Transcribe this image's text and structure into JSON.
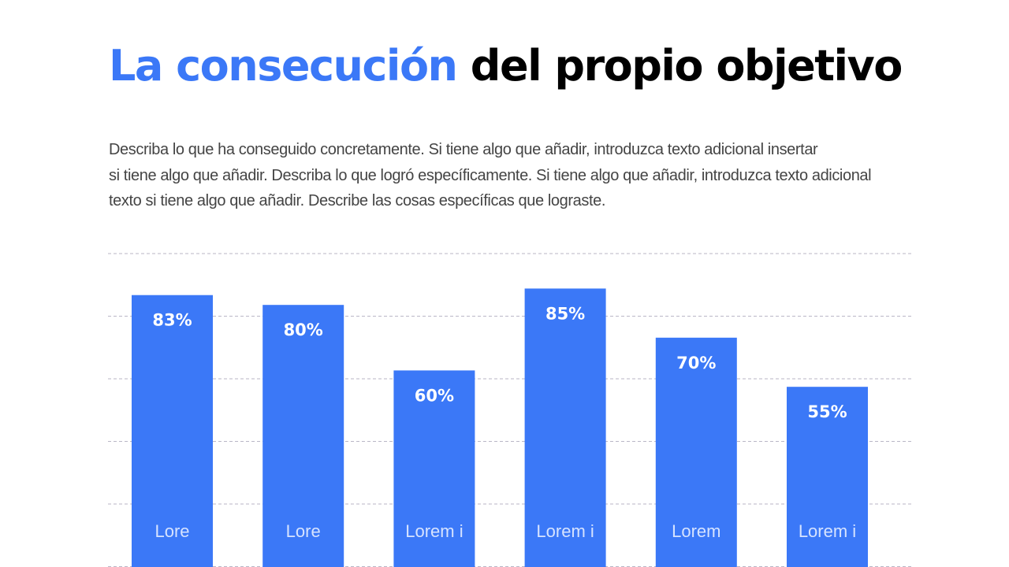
{
  "slide": {
    "title_accent": "La consecución",
    "title_rest": "del propio objetivo",
    "description_lines": [
      "Describa lo que ha conseguido concretamente. Si tiene algo que añadir, introduzca texto adicional insertar",
      "si tiene algo que añadir. Describa lo que logró específicamente. Si tiene algo que añadir, introduzca texto adicional",
      "texto si tiene algo que añadir. Describe las cosas específicas que lograste."
    ]
  },
  "colors": {
    "accent": "#3b78f7",
    "bar": "#3b78f7",
    "grid": "#b9b6c6",
    "bar_label": "#ffffff",
    "category_label": "#d6e3ff"
  },
  "chart_data": {
    "type": "bar",
    "categories": [
      "Lore",
      "Lore",
      "Lorem i",
      "Lorem i",
      "Lorem",
      "Lorem i"
    ],
    "values": [
      83,
      80,
      60,
      85,
      70,
      55
    ],
    "data_labels": [
      "83%",
      "80%",
      "60%",
      "85%",
      "70%",
      "55%"
    ],
    "title": "",
    "xlabel": "",
    "ylabel": "",
    "grid": true,
    "legend": "none"
  }
}
